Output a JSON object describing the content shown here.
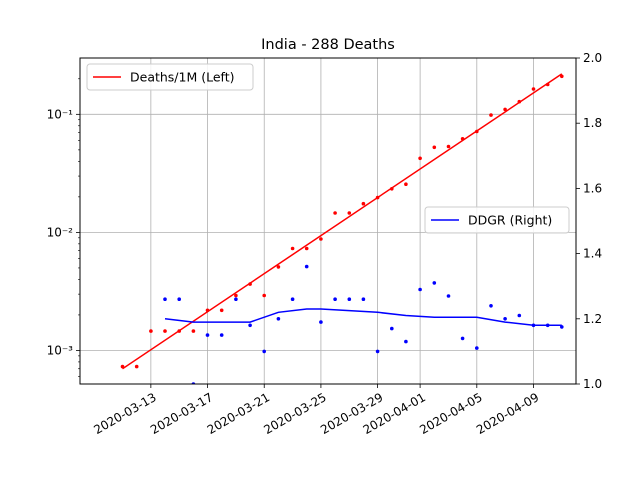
{
  "chart_data": {
    "type": "line",
    "title": "India - 288 Deaths",
    "xlabel": "",
    "ylabel_left": "",
    "ylabel_right": "",
    "x_ticks": [
      "2020-03-13",
      "2020-03-17",
      "2020-03-21",
      "2020-03-25",
      "2020-03-29",
      "2020-04-01",
      "2020-04-05",
      "2020-04-09"
    ],
    "x_range": [
      "2020-03-08",
      "2020-04-12"
    ],
    "left_axis": {
      "scale": "log",
      "range": [
        0.00052,
        0.3
      ],
      "ticks": [
        "10⁻³",
        "10⁻²",
        "10⁻¹"
      ],
      "tick_values": [
        0.001,
        0.01,
        0.1
      ]
    },
    "right_axis": {
      "scale": "linear",
      "range": [
        1.0,
        2.0
      ],
      "ticks": [
        "1.0",
        "1.2",
        "1.4",
        "1.6",
        "1.8",
        "2.0"
      ],
      "tick_values": [
        1.0,
        1.2,
        1.4,
        1.6,
        1.8,
        2.0
      ]
    },
    "grid": true,
    "series": [
      {
        "name": "Deaths/1M (Left)",
        "axis": "left",
        "color": "#ff0000",
        "style": "line",
        "x": [
          "2020-03-11",
          "2020-04-11"
        ],
        "values": [
          0.0007,
          0.22
        ]
      },
      {
        "axis": "left",
        "color": "#ff0000",
        "style": "points",
        "x": [
          "2020-03-11",
          "2020-03-12",
          "2020-03-13",
          "2020-03-14",
          "2020-03-15",
          "2020-03-16",
          "2020-03-17",
          "2020-03-18",
          "2020-03-19",
          "2020-03-20",
          "2020-03-21",
          "2020-03-22",
          "2020-03-23",
          "2020-03-24",
          "2020-03-25",
          "2020-03-26",
          "2020-03-27",
          "2020-03-28",
          "2020-03-29",
          "2020-03-30",
          "2020-03-31",
          "2020-04-01",
          "2020-04-02",
          "2020-04-03",
          "2020-04-04",
          "2020-04-05",
          "2020-04-06",
          "2020-04-07",
          "2020-04-08",
          "2020-04-09",
          "2020-04-10",
          "2020-04-11"
        ],
        "values": [
          0.00073,
          0.00073,
          0.00146,
          0.00146,
          0.00146,
          0.00146,
          0.00219,
          0.00219,
          0.00292,
          0.00365,
          0.00292,
          0.0051,
          0.0073,
          0.0073,
          0.0088,
          0.0146,
          0.0146,
          0.0175,
          0.0197,
          0.0234,
          0.0256,
          0.0424,
          0.0526,
          0.0534,
          0.0621,
          0.0716,
          0.0986,
          0.11,
          0.128,
          0.164,
          0.179,
          0.21
        ]
      },
      {
        "name": "DDGR (Right)",
        "axis": "right",
        "color": "#0000ff",
        "style": "line",
        "x": [
          "2020-03-14",
          "2020-03-16",
          "2020-03-18",
          "2020-03-20",
          "2020-03-22",
          "2020-03-24",
          "2020-03-25",
          "2020-03-27",
          "2020-03-29",
          "2020-03-31",
          "2020-04-02",
          "2020-04-05",
          "2020-04-07",
          "2020-04-09",
          "2020-04-11"
        ],
        "values": [
          1.2,
          1.19,
          1.19,
          1.19,
          1.22,
          1.23,
          1.23,
          1.225,
          1.22,
          1.21,
          1.205,
          1.205,
          1.19,
          1.18,
          1.18
        ]
      },
      {
        "axis": "right",
        "color": "#0000ff",
        "style": "points",
        "x": [
          "2020-03-14",
          "2020-03-15",
          "2020-03-16",
          "2020-03-17",
          "2020-03-18",
          "2020-03-19",
          "2020-03-20",
          "2020-03-21",
          "2020-03-22",
          "2020-03-23",
          "2020-03-24",
          "2020-03-25",
          "2020-03-26",
          "2020-03-27",
          "2020-03-28",
          "2020-03-29",
          "2020-03-30",
          "2020-03-31",
          "2020-04-01",
          "2020-04-02",
          "2020-04-03",
          "2020-04-04",
          "2020-04-05",
          "2020-04-06",
          "2020-04-07",
          "2020-04-08",
          "2020-04-09",
          "2020-04-10",
          "2020-04-11"
        ],
        "values": [
          1.26,
          1.26,
          1.0,
          1.15,
          1.15,
          1.26,
          1.18,
          1.1,
          1.2,
          1.26,
          1.36,
          1.19,
          1.26,
          1.26,
          1.26,
          1.1,
          1.17,
          1.13,
          1.29,
          1.31,
          1.27,
          1.14,
          1.11,
          1.24,
          1.2,
          1.21,
          1.18,
          1.18,
          1.175
        ]
      }
    ],
    "legends": [
      {
        "label": "Deaths/1M (Left)",
        "color": "#ff0000",
        "placement": "upper-left"
      },
      {
        "label": "DDGR (Right)",
        "color": "#0000ff",
        "placement": "center-right"
      }
    ]
  }
}
